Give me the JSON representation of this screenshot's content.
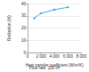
{
  "chart_data": {
    "type": "line",
    "x": [
      1000,
      2000,
      4000,
      6000
    ],
    "values": [
      28,
      32,
      35,
      37
    ],
    "color": "#4fb3e8",
    "marker": "circle",
    "xlabel": "Heat transfer coefficient (W/m²K)",
    "ylabel": "Reduction (%)",
    "annotation": "Flow rate: 100 l/h",
    "xlim": [
      0,
      8000
    ],
    "xticks": [
      {
        "value": 0,
        "label": "0"
      },
      {
        "value": 2000,
        "label": "2 000"
      },
      {
        "value": 4000,
        "label": "4 000"
      },
      {
        "value": 6000,
        "label": "6 000"
      },
      {
        "value": 8000,
        "label": "8 000"
      }
    ],
    "ylim": [
      0,
      40
    ],
    "yticks": [
      0,
      10,
      20,
      30,
      40
    ],
    "grid": true
  }
}
